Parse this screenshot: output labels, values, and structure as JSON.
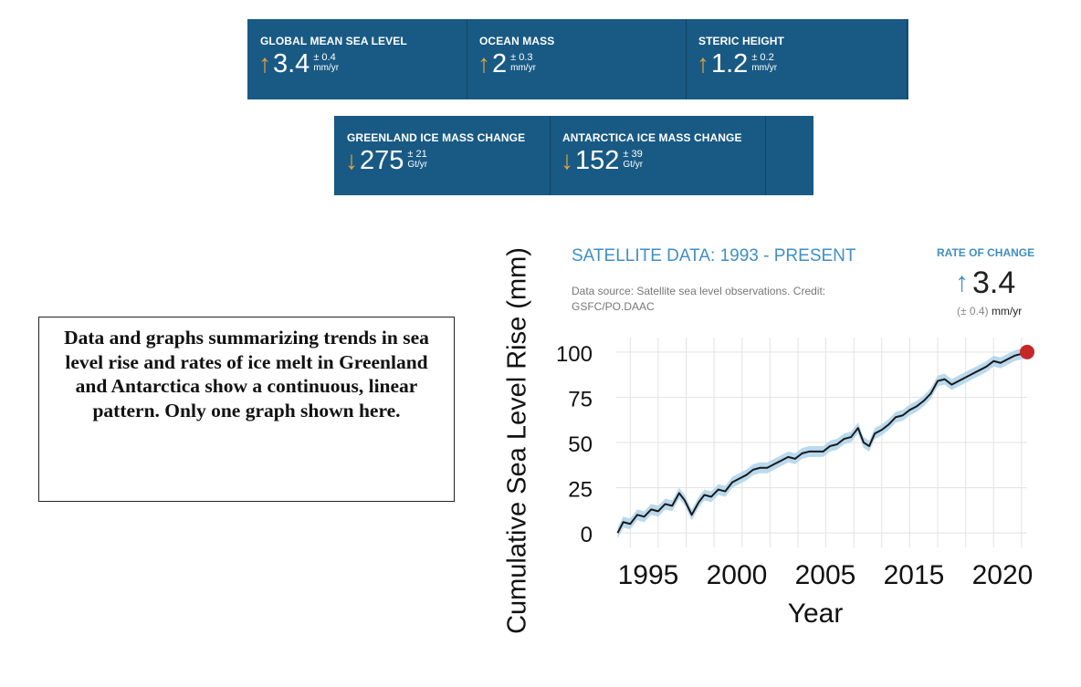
{
  "indicators_row1": [
    {
      "label": "GLOBAL MEAN SEA LEVEL",
      "arrow": "↑",
      "value": "3.4",
      "uncertainty": "± 0.4",
      "unit": "mm/yr"
    },
    {
      "label": "OCEAN MASS",
      "arrow": "↑",
      "value": "2",
      "uncertainty": "± 0.3",
      "unit": "mm/yr"
    },
    {
      "label": "STERIC HEIGHT",
      "arrow": "↑",
      "value": "1.2",
      "uncertainty": "± 0.2",
      "unit": "mm/yr"
    }
  ],
  "indicators_row2": [
    {
      "label": "GREENLAND ICE MASS CHANGE",
      "arrow": "↓",
      "value": "275",
      "uncertainty": "± 21",
      "unit": "Gt/yr"
    },
    {
      "label": "ANTARCTICA ICE MASS CHANGE",
      "arrow": "↓",
      "value": "152",
      "uncertainty": "± 39",
      "unit": "Gt/yr"
    }
  ],
  "note": "Data and graphs summarizing trends in sea level rise and rates of ice melt in Greenland and Antarctica show a continuous, linear pattern.  Only one graph shown here.",
  "satellite": {
    "title": "SATELLITE DATA: 1993 - PRESENT",
    "source": "Data source: Satellite sea level observations. Credit: GSFC/PO.DAAC",
    "rate_label": "RATE OF CHANGE",
    "rate_arrow": "↑",
    "rate_value": "3.4",
    "rate_uncertainty": "(± 0.4)",
    "rate_unit": "mm/yr"
  },
  "colors": {
    "panel": "#195a84",
    "panel_arrow": "#e6a23c",
    "accent_blue": "#3f8fc5",
    "band": "#b9d9ee",
    "line": "#1a1a1a",
    "endpoint": "#c62828"
  },
  "chart_data": {
    "type": "line",
    "title": "",
    "xlabel": "Year",
    "ylabel": "Cumulative Sea Level Rise (mm)",
    "y_ticks": [
      "0",
      "25",
      "50",
      "75",
      "100"
    ],
    "x_ticks": [
      "1995",
      "2000",
      "2005",
      "2015",
      "2020"
    ],
    "ylim": [
      0,
      100
    ],
    "grid": true,
    "series": [
      {
        "x": [
          1993.1,
          1993.5,
          1994.0,
          1994.5,
          1995.0,
          1995.5,
          1996.0,
          1996.5,
          1997.0,
          1997.5,
          1997.9,
          1998.4,
          1998.9,
          1999.3,
          1999.8,
          2000.3,
          2000.8,
          2001.3,
          2001.8,
          2002.3,
          2002.8,
          2003.3,
          2003.8,
          2004.3,
          2004.8,
          2005.3,
          2005.8,
          2006.3,
          2006.8,
          2007.3,
          2007.8,
          2008.3,
          2008.8,
          2009.3,
          2009.8,
          2010.3,
          2010.7,
          2011.1,
          2011.5,
          2012.0,
          2012.5,
          2013.0,
          2013.5,
          2014.0,
          2014.5,
          2015.0,
          2015.5,
          2016.0,
          2016.5,
          2017.0,
          2017.5,
          2018.0,
          2018.5,
          2019.0,
          2019.5,
          2020.0,
          2020.5,
          2021.0,
          2021.5,
          2022.0,
          2022.4
        ],
        "y": [
          0,
          6,
          5,
          10,
          9,
          13,
          12,
          16,
          15,
          22,
          18,
          10,
          17,
          21,
          20,
          24,
          23,
          28,
          30,
          32,
          35,
          36,
          36,
          38,
          40,
          42,
          41,
          44,
          45,
          45,
          45,
          48,
          49,
          52,
          53,
          58,
          50,
          48,
          55,
          57,
          60,
          64,
          65,
          68,
          70,
          73,
          77,
          84,
          85,
          82,
          84,
          86,
          88,
          90,
          92,
          95,
          94,
          96,
          98,
          99,
          100
        ]
      }
    ],
    "band_half_width": 3
  }
}
